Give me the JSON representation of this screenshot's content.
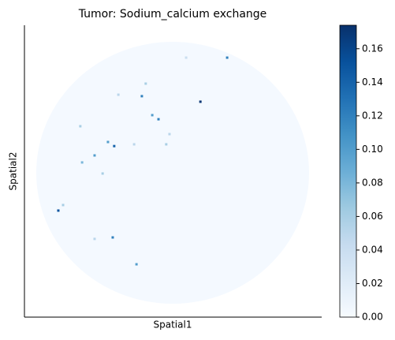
{
  "chart_data": {
    "type": "scatter",
    "title": "Tumor: Sodium_calcium exchange",
    "xlabel": "Spatial1",
    "ylabel": "Spatial2",
    "colormap": "Blues",
    "xlim": [
      0,
      100
    ],
    "ylim": [
      0,
      100
    ],
    "x": [
      59.2,
      68.2,
      39.5,
      43.0,
      45.1,
      28.1,
      30.2,
      23.6,
      19.4,
      18.8,
      11.4,
      13.0,
      29.7,
      23.6,
      37.7,
      47.7,
      48.8,
      40.8,
      54.4,
      26.3,
      31.6,
      36.9
    ],
    "y": [
      73.8,
      88.9,
      75.7,
      69.2,
      67.8,
      60.0,
      58.6,
      55.4,
      53.0,
      65.4,
      36.5,
      38.4,
      27.3,
      26.8,
      18.1,
      59.2,
      62.7,
      80.0,
      88.9,
      49.2,
      76.2,
      59.2
    ],
    "values": [
      0.17,
      0.12,
      0.12,
      0.1,
      0.12,
      0.1,
      0.14,
      0.1,
      0.08,
      0.06,
      0.15,
      0.06,
      0.12,
      0.05,
      0.1,
      0.06,
      0.05,
      0.06,
      0.04,
      0.06,
      0.05,
      0.05
    ],
    "clim": [
      0,
      0.174
    ],
    "cticks": [
      {
        "value": 0,
        "label": "0.00"
      },
      {
        "value": 0.02,
        "label": "0.02"
      },
      {
        "value": 0.04,
        "label": "0.04"
      },
      {
        "value": 0.06,
        "label": "0.06"
      },
      {
        "value": 0.08,
        "label": "0.08"
      },
      {
        "value": 0.1,
        "label": "0.10"
      },
      {
        "value": 0.12,
        "label": "0.12"
      },
      {
        "value": 0.14,
        "label": "0.14"
      },
      {
        "value": 0.16,
        "label": "0.16"
      }
    ]
  }
}
